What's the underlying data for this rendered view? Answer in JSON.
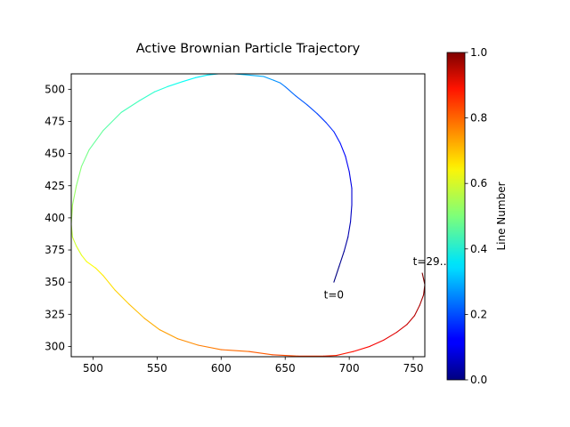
{
  "chart_data": {
    "type": "line",
    "title": "Active Brownian Particle Trajectory",
    "xlabel": "",
    "ylabel": "",
    "xlim": [
      483,
      759
    ],
    "ylim": [
      292,
      512
    ],
    "x_ticks": [
      500,
      550,
      600,
      650,
      700,
      750
    ],
    "y_ticks": [
      300,
      325,
      350,
      375,
      400,
      425,
      450,
      475,
      500
    ],
    "grid": false,
    "colormap": "jet",
    "colorbar": {
      "label": "Line Number",
      "range": [
        0.0,
        1.0
      ],
      "ticks": [
        "0.0",
        "0.2",
        "0.4",
        "0.6",
        "0.8",
        "1.0"
      ]
    },
    "annotations": [
      {
        "text": "t=0",
        "x": 688,
        "y": 340
      },
      {
        "text": "t=29…0",
        "x": 767,
        "y": 366
      }
    ],
    "series": [
      {
        "x": [
          688,
          692,
          696,
          699,
          701,
          702,
          702,
          700,
          697,
          693,
          688,
          682,
          675,
          667,
          658,
          650,
          646,
          641,
          633,
          622,
          610,
          598,
          589,
          580,
          570,
          558,
          548,
          536,
          522,
          508,
          497,
          491,
          487,
          484,
          483,
          484,
          487,
          491,
          495,
          502,
          508,
          517,
          528,
          540,
          552,
          566,
          582,
          600,
          622,
          640,
          660,
          680,
          690,
          703,
          716,
          727,
          737,
          745,
          751,
          755,
          758,
          759,
          757
        ],
        "y": [
          350,
          362,
          374,
          385,
          397,
          410,
          423,
          436,
          448,
          458,
          467,
          474,
          481,
          488,
          495,
          502,
          505,
          507,
          510,
          511,
          512,
          512,
          511,
          509,
          506,
          502,
          498,
          491,
          482,
          468,
          453,
          440,
          425,
          410,
          395,
          385,
          378,
          371,
          366,
          361,
          355,
          344,
          333,
          322,
          313,
          306,
          301,
          297.5,
          296,
          293.5,
          292.5,
          292.5,
          293,
          296,
          300,
          305,
          311,
          317,
          324,
          332,
          340,
          348,
          357
        ]
      }
    ]
  }
}
